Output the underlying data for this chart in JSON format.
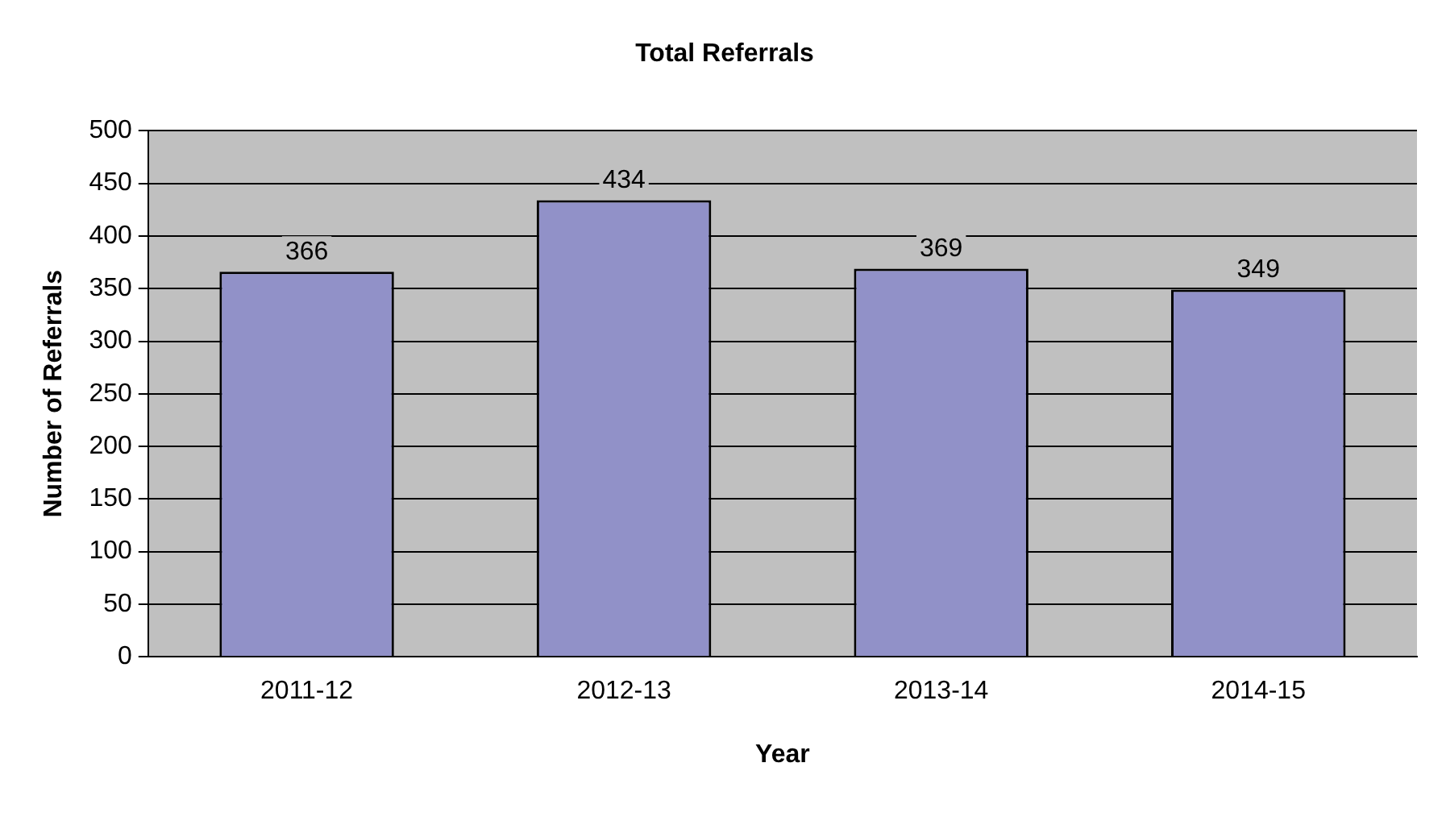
{
  "chart_data": {
    "type": "bar",
    "title": "Total Referrals",
    "xlabel": "Year",
    "ylabel": "Number of Referrals",
    "categories": [
      "2011-12",
      "2012-13",
      "2013-14",
      "2014-15"
    ],
    "values": [
      366,
      434,
      369,
      349
    ],
    "color": "#9191c8",
    "ylim": [
      0,
      500
    ],
    "yticks": [
      0,
      50,
      100,
      150,
      200,
      250,
      300,
      350,
      400,
      450,
      500
    ],
    "grid": "y",
    "data_labels": true,
    "legend": false
  }
}
